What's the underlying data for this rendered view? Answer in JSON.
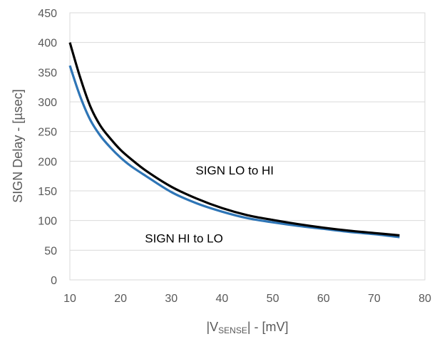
{
  "chart_data": {
    "type": "line",
    "xlabel": {
      "prefix": "|V",
      "subscript": "SENSE",
      "suffix": "| - [mV]"
    },
    "ylabel": "SIGN Delay - [µsec]",
    "xlim": [
      10,
      80
    ],
    "ylim": [
      0,
      450
    ],
    "xticks": [
      10,
      20,
      30,
      40,
      50,
      60,
      70,
      80
    ],
    "yticks": [
      0,
      50,
      100,
      150,
      200,
      250,
      300,
      350,
      400,
      450
    ],
    "grid": "horizontal",
    "series": [
      {
        "name": "SIGN LO to HI",
        "color": "#000000",
        "x": [
          10,
          12,
          14,
          16,
          18,
          20,
          22,
          25,
          30,
          35,
          40,
          45,
          50,
          55,
          60,
          65,
          70,
          75
        ],
        "y": [
          400,
          342,
          293,
          260,
          238,
          219,
          204,
          184,
          157,
          137,
          121,
          109,
          101,
          94,
          88,
          83,
          79,
          75
        ]
      },
      {
        "name": "SIGN HI to LO",
        "color": "#2e75b6",
        "x": [
          10,
          12,
          14,
          16,
          18,
          20,
          22,
          25,
          30,
          35,
          40,
          45,
          50,
          55,
          60,
          65,
          70,
          75
        ],
        "y": [
          361,
          310,
          270,
          243,
          223,
          206,
          192,
          175,
          148,
          129,
          115,
          104,
          97,
          91,
          86,
          81,
          77,
          72
        ]
      }
    ],
    "annotations": [
      {
        "text": "SIGN LO to HI",
        "x": 42.5,
        "y": 185
      },
      {
        "text": "SIGN HI to LO",
        "x": 32.5,
        "y": 70
      }
    ]
  }
}
